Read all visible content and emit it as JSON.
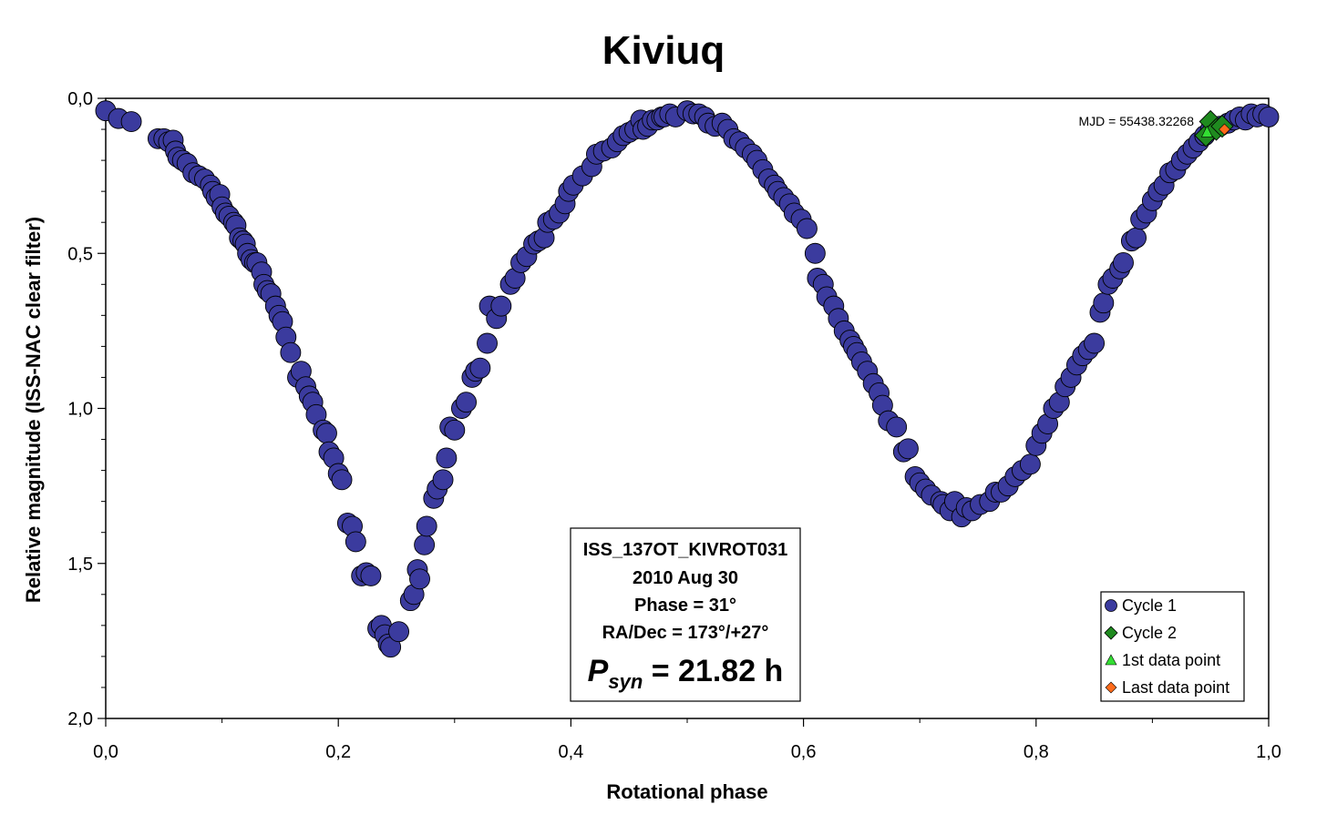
{
  "chart_data": {
    "type": "scatter",
    "title": "Kiviuq",
    "xlabel": "Rotational phase",
    "ylabel": "Relative magnitude (ISS-NAC clear filter)",
    "xlim": [
      0.0,
      1.0
    ],
    "ylim": [
      2.0,
      0.0
    ],
    "y_inverted": true,
    "grid": false,
    "x_ticks": [
      "0,0",
      "0,2",
      "0,4",
      "0,6",
      "0,8",
      "1,0"
    ],
    "x_tick_values": [
      0.0,
      0.2,
      0.4,
      0.6,
      0.8,
      1.0
    ],
    "y_ticks": [
      "0,0",
      "0,5",
      "1,0",
      "1,5",
      "2,0"
    ],
    "y_tick_values": [
      0.0,
      0.5,
      1.0,
      1.5,
      2.0
    ],
    "mjd_label": "MJD = 55438.32268",
    "info_box": {
      "line1": "ISS_137OT_KIVROT031",
      "line2": "2010 Aug 30",
      "line3": "Phase = 31°",
      "line4": "RA/Dec = 173°/+27°",
      "period_symbol": "P",
      "period_subscript": "syn",
      "period_value": " = 21.82 h"
    },
    "legend_position": "bottom-right",
    "colors": {
      "cycle1": "#3b3b9e",
      "cycle2": "#1f8a1f",
      "first_point": "#33dd33",
      "last_point": "#ff6a1a"
    },
    "series": [
      {
        "name": "Cycle 1",
        "marker": "circle",
        "points": [
          [
            0.0,
            0.04
          ],
          [
            0.011,
            0.065
          ],
          [
            0.022,
            0.075
          ],
          [
            0.045,
            0.13
          ],
          [
            0.05,
            0.13
          ],
          [
            0.054,
            0.14
          ],
          [
            0.058,
            0.135
          ],
          [
            0.06,
            0.17
          ],
          [
            0.062,
            0.19
          ],
          [
            0.066,
            0.2
          ],
          [
            0.07,
            0.21
          ],
          [
            0.075,
            0.24
          ],
          [
            0.08,
            0.25
          ],
          [
            0.085,
            0.26
          ],
          [
            0.09,
            0.28
          ],
          [
            0.092,
            0.3
          ],
          [
            0.095,
            0.32
          ],
          [
            0.098,
            0.31
          ],
          [
            0.1,
            0.35
          ],
          [
            0.103,
            0.37
          ],
          [
            0.106,
            0.38
          ],
          [
            0.11,
            0.4
          ],
          [
            0.112,
            0.41
          ],
          [
            0.115,
            0.45
          ],
          [
            0.118,
            0.46
          ],
          [
            0.12,
            0.47
          ],
          [
            0.122,
            0.5
          ],
          [
            0.125,
            0.52
          ],
          [
            0.128,
            0.53
          ],
          [
            0.13,
            0.53
          ],
          [
            0.134,
            0.56
          ],
          [
            0.136,
            0.6
          ],
          [
            0.139,
            0.62
          ],
          [
            0.142,
            0.63
          ],
          [
            0.146,
            0.67
          ],
          [
            0.149,
            0.7
          ],
          [
            0.152,
            0.72
          ],
          [
            0.155,
            0.77
          ],
          [
            0.159,
            0.82
          ],
          [
            0.165,
            0.9
          ],
          [
            0.168,
            0.88
          ],
          [
            0.172,
            0.93
          ],
          [
            0.175,
            0.96
          ],
          [
            0.178,
            0.98
          ],
          [
            0.181,
            1.02
          ],
          [
            0.187,
            1.07
          ],
          [
            0.19,
            1.08
          ],
          [
            0.192,
            1.14
          ],
          [
            0.196,
            1.16
          ],
          [
            0.2,
            1.21
          ],
          [
            0.203,
            1.23
          ],
          [
            0.208,
            1.37
          ],
          [
            0.212,
            1.38
          ],
          [
            0.215,
            1.43
          ],
          [
            0.22,
            1.54
          ],
          [
            0.224,
            1.53
          ],
          [
            0.228,
            1.54
          ],
          [
            0.234,
            1.71
          ],
          [
            0.237,
            1.7
          ],
          [
            0.24,
            1.73
          ],
          [
            0.243,
            1.76
          ],
          [
            0.245,
            1.77
          ],
          [
            0.252,
            1.72
          ],
          [
            0.262,
            1.62
          ],
          [
            0.265,
            1.6
          ],
          [
            0.268,
            1.52
          ],
          [
            0.27,
            1.55
          ],
          [
            0.274,
            1.44
          ],
          [
            0.276,
            1.38
          ],
          [
            0.282,
            1.29
          ],
          [
            0.285,
            1.26
          ],
          [
            0.29,
            1.23
          ],
          [
            0.293,
            1.16
          ],
          [
            0.296,
            1.06
          ],
          [
            0.3,
            1.07
          ],
          [
            0.306,
            1.0
          ],
          [
            0.31,
            0.98
          ],
          [
            0.315,
            0.9
          ],
          [
            0.318,
            0.88
          ],
          [
            0.322,
            0.87
          ],
          [
            0.328,
            0.79
          ],
          [
            0.33,
            0.67
          ],
          [
            0.336,
            0.71
          ],
          [
            0.34,
            0.67
          ],
          [
            0.348,
            0.6
          ],
          [
            0.352,
            0.58
          ],
          [
            0.357,
            0.53
          ],
          [
            0.362,
            0.51
          ],
          [
            0.368,
            0.47
          ],
          [
            0.372,
            0.46
          ],
          [
            0.377,
            0.45
          ],
          [
            0.38,
            0.4
          ],
          [
            0.385,
            0.39
          ],
          [
            0.39,
            0.37
          ],
          [
            0.395,
            0.34
          ],
          [
            0.398,
            0.3
          ],
          [
            0.402,
            0.28
          ],
          [
            0.41,
            0.25
          ],
          [
            0.418,
            0.22
          ],
          [
            0.422,
            0.18
          ],
          [
            0.428,
            0.17
          ],
          [
            0.435,
            0.16
          ],
          [
            0.44,
            0.14
          ],
          [
            0.445,
            0.12
          ],
          [
            0.45,
            0.11
          ],
          [
            0.455,
            0.1
          ],
          [
            0.46,
            0.07
          ],
          [
            0.462,
            0.1
          ],
          [
            0.466,
            0.09
          ],
          [
            0.47,
            0.07
          ],
          [
            0.474,
            0.07
          ],
          [
            0.478,
            0.06
          ],
          [
            0.48,
            0.06
          ],
          [
            0.485,
            0.05
          ],
          [
            0.49,
            0.06
          ],
          [
            0.5,
            0.04
          ],
          [
            0.505,
            0.05
          ],
          [
            0.51,
            0.05
          ],
          [
            0.515,
            0.06
          ],
          [
            0.518,
            0.08
          ],
          [
            0.524,
            0.09
          ],
          [
            0.53,
            0.08
          ],
          [
            0.535,
            0.1
          ],
          [
            0.54,
            0.13
          ],
          [
            0.545,
            0.14
          ],
          [
            0.55,
            0.16
          ],
          [
            0.556,
            0.18
          ],
          [
            0.56,
            0.2
          ],
          [
            0.565,
            0.23
          ],
          [
            0.57,
            0.26
          ],
          [
            0.575,
            0.28
          ],
          [
            0.578,
            0.3
          ],
          [
            0.583,
            0.32
          ],
          [
            0.588,
            0.34
          ],
          [
            0.592,
            0.37
          ],
          [
            0.598,
            0.39
          ],
          [
            0.603,
            0.42
          ],
          [
            0.61,
            0.5
          ],
          [
            0.612,
            0.58
          ],
          [
            0.617,
            0.6
          ],
          [
            0.62,
            0.64
          ],
          [
            0.626,
            0.67
          ],
          [
            0.63,
            0.71
          ],
          [
            0.635,
            0.75
          ],
          [
            0.64,
            0.78
          ],
          [
            0.643,
            0.8
          ],
          [
            0.646,
            0.82
          ],
          [
            0.65,
            0.85
          ],
          [
            0.655,
            0.88
          ],
          [
            0.66,
            0.92
          ],
          [
            0.665,
            0.95
          ],
          [
            0.668,
            0.99
          ],
          [
            0.673,
            1.04
          ],
          [
            0.68,
            1.06
          ],
          [
            0.686,
            1.14
          ],
          [
            0.69,
            1.13
          ],
          [
            0.696,
            1.22
          ],
          [
            0.7,
            1.24
          ],
          [
            0.705,
            1.26
          ],
          [
            0.71,
            1.28
          ],
          [
            0.718,
            1.3
          ],
          [
            0.72,
            1.31
          ],
          [
            0.726,
            1.33
          ],
          [
            0.73,
            1.3
          ],
          [
            0.736,
            1.35
          ],
          [
            0.74,
            1.32
          ],
          [
            0.745,
            1.33
          ],
          [
            0.752,
            1.31
          ],
          [
            0.76,
            1.3
          ],
          [
            0.765,
            1.27
          ],
          [
            0.77,
            1.27
          ],
          [
            0.776,
            1.25
          ],
          [
            0.782,
            1.22
          ],
          [
            0.788,
            1.2
          ],
          [
            0.795,
            1.18
          ],
          [
            0.8,
            1.12
          ],
          [
            0.805,
            1.08
          ],
          [
            0.81,
            1.05
          ],
          [
            0.815,
            1.0
          ],
          [
            0.82,
            0.98
          ],
          [
            0.825,
            0.93
          ],
          [
            0.83,
            0.9
          ],
          [
            0.835,
            0.86
          ],
          [
            0.84,
            0.83
          ],
          [
            0.845,
            0.81
          ],
          [
            0.85,
            0.79
          ],
          [
            0.855,
            0.69
          ],
          [
            0.858,
            0.66
          ],
          [
            0.862,
            0.6
          ],
          [
            0.866,
            0.58
          ],
          [
            0.872,
            0.55
          ],
          [
            0.875,
            0.53
          ],
          [
            0.882,
            0.46
          ],
          [
            0.886,
            0.45
          ],
          [
            0.89,
            0.39
          ],
          [
            0.895,
            0.37
          ],
          [
            0.9,
            0.33
          ],
          [
            0.905,
            0.3
          ],
          [
            0.91,
            0.28
          ],
          [
            0.915,
            0.24
          ],
          [
            0.92,
            0.23
          ],
          [
            0.925,
            0.2
          ],
          [
            0.93,
            0.18
          ],
          [
            0.935,
            0.16
          ],
          [
            0.94,
            0.14
          ],
          [
            0.945,
            0.12
          ],
          [
            0.95,
            0.1
          ],
          [
            0.958,
            0.09
          ],
          [
            0.965,
            0.08
          ],
          [
            0.97,
            0.07
          ],
          [
            0.975,
            0.06
          ],
          [
            0.98,
            0.07
          ],
          [
            0.985,
            0.05
          ],
          [
            0.99,
            0.06
          ],
          [
            0.995,
            0.05
          ],
          [
            1.0,
            0.06
          ]
        ]
      },
      {
        "name": "Cycle 2",
        "marker": "diamond",
        "points": [
          [
            0.946,
            0.12
          ],
          [
            0.95,
            0.075
          ],
          [
            0.955,
            0.1
          ],
          [
            0.96,
            0.09
          ]
        ]
      },
      {
        "name": "1st data point",
        "marker": "triangle",
        "points": [
          [
            0.947,
            0.11
          ]
        ]
      },
      {
        "name": "Last data point",
        "marker": "diamond-small",
        "points": [
          [
            0.962,
            0.1
          ]
        ]
      }
    ]
  }
}
